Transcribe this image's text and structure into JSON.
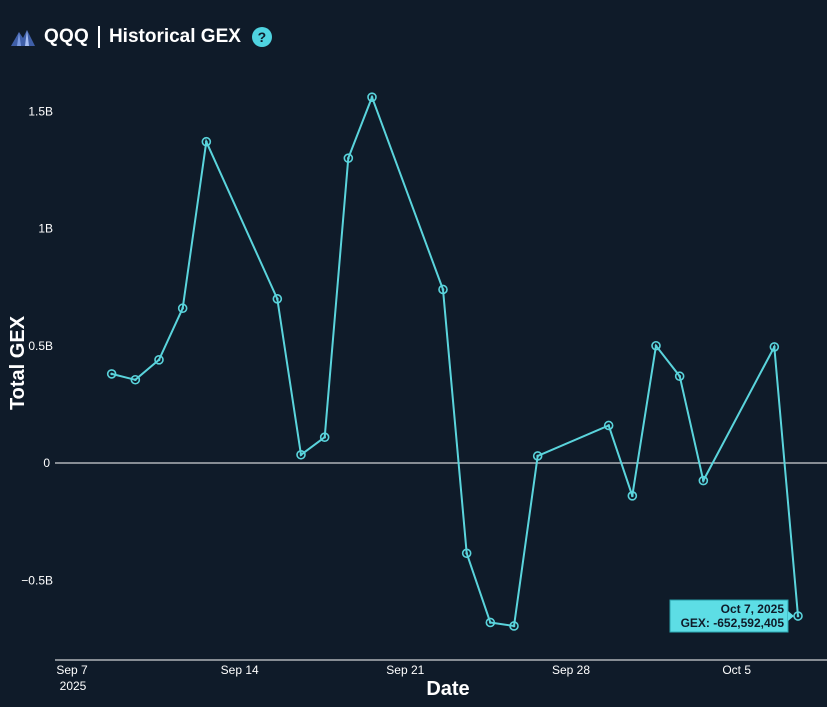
{
  "header": {
    "ticker": "QQQ",
    "title": "Historical GEX",
    "help_label": "?",
    "logo_icon": "mountain-logo-icon"
  },
  "colors": {
    "background": "#0f1b29",
    "line": "#5ad4dc",
    "zero_line": "#ffffff",
    "tooltip_bg": "#5ddde5"
  },
  "chart_data": {
    "type": "line",
    "title": "QQQ | Historical GEX",
    "xlabel": "Date",
    "ylabel": "Total GEX",
    "ylim": [
      -0.8,
      1.6
    ],
    "yticks": [
      {
        "v": 1.5,
        "label": "1.5B"
      },
      {
        "v": 1.0,
        "label": "1B"
      },
      {
        "v": 0.5,
        "label": "0.5B"
      },
      {
        "v": 0.0,
        "label": "0"
      },
      {
        "v": -0.5,
        "label": "−0.5B"
      }
    ],
    "xticks": [
      {
        "date": "2025-09-07",
        "label": "Sep 7",
        "sublabel": "2025"
      },
      {
        "date": "2025-09-14",
        "label": "Sep 14"
      },
      {
        "date": "2025-09-21",
        "label": "Sep 21"
      },
      {
        "date": "2025-09-28",
        "label": "Sep 28"
      },
      {
        "date": "2025-10-05",
        "label": "Oct 5"
      }
    ],
    "xlim": [
      "2025-09-07",
      "2025-10-08"
    ],
    "series": [
      {
        "x": [
          "2025-09-08",
          "2025-09-09",
          "2025-09-10",
          "2025-09-11",
          "2025-09-12",
          "2025-09-15",
          "2025-09-16",
          "2025-09-17",
          "2025-09-18",
          "2025-09-19",
          "2025-09-22",
          "2025-09-23",
          "2025-09-24",
          "2025-09-25",
          "2025-09-26",
          "2025-09-29",
          "2025-09-30",
          "2025-10-01",
          "2025-10-02",
          "2025-10-03",
          "2025-10-06",
          "2025-10-07"
        ],
        "y": [
          0.38,
          0.355,
          0.44,
          0.66,
          1.37,
          0.7,
          0.035,
          0.11,
          1.3,
          1.56,
          0.74,
          -0.385,
          -0.68,
          -0.695,
          0.03,
          0.16,
          -0.14,
          0.5,
          0.37,
          -0.075,
          0.495,
          -0.6526
        ]
      }
    ],
    "tooltip": {
      "date": "Oct 7, 2025",
      "value": "GEX: -652,592,405"
    }
  }
}
